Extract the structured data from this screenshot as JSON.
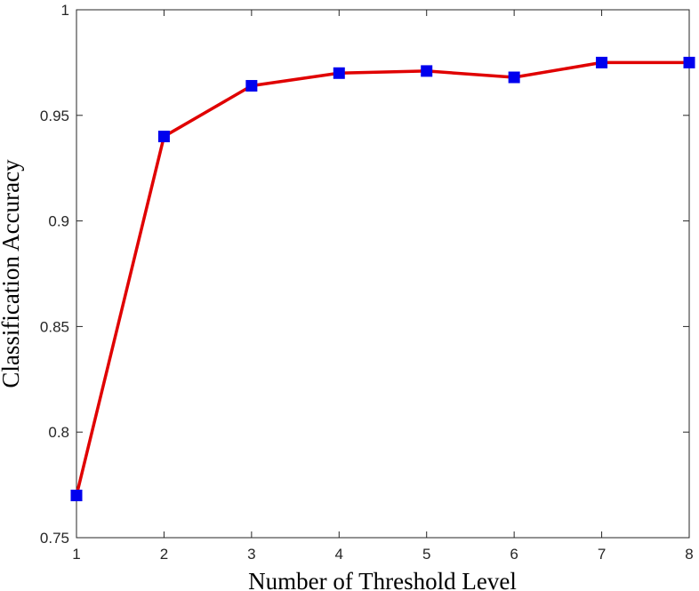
{
  "chart_data": {
    "type": "line",
    "title": "",
    "xlabel": "Number of Threshold Level",
    "ylabel": "Classification Accuracy",
    "x": [
      1,
      2,
      3,
      4,
      5,
      6,
      7,
      8
    ],
    "series": [
      {
        "values": [
          0.77,
          0.94,
          0.964,
          0.97,
          0.971,
          0.968,
          0.975,
          0.975
        ],
        "line_color": "#e00000",
        "marker": "square",
        "marker_color": "#0000ee"
      }
    ],
    "xlim": [
      1,
      8
    ],
    "ylim": [
      0.75,
      1
    ],
    "xticks": [
      "1",
      "2",
      "3",
      "4",
      "5",
      "6",
      "7",
      "8"
    ],
    "yticks": [
      "0.75",
      "0.8",
      "0.85",
      "0.9",
      "0.95",
      "1"
    ],
    "ytick_values": [
      0.75,
      0.8,
      0.85,
      0.9,
      0.95,
      1
    ],
    "grid": false,
    "legend": "none"
  }
}
